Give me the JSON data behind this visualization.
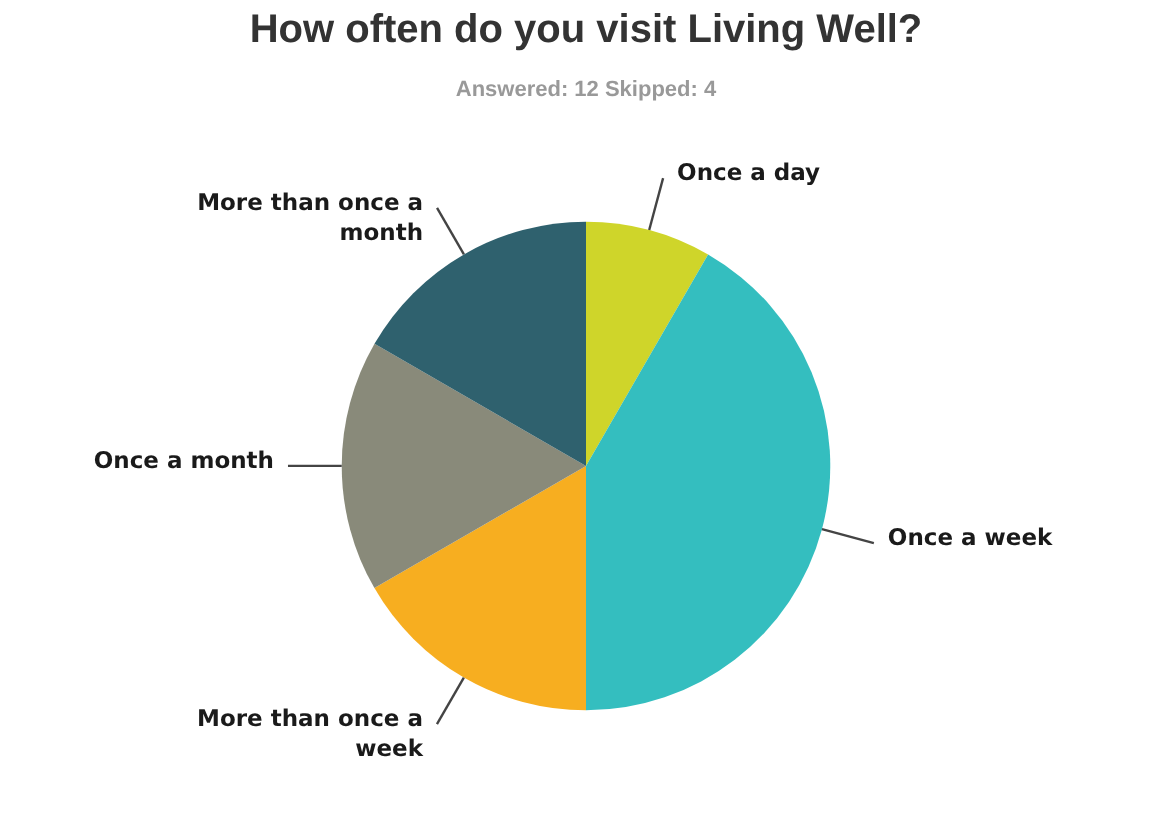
{
  "chart_data": {
    "type": "pie",
    "title": "How often do you visit Living Well?",
    "subtitle": "Answered: 12 Skipped: 4",
    "categories": [
      "Once a day",
      "Once a week",
      "More than once a week",
      "Once a month",
      "More than once a month"
    ],
    "values": [
      8.33,
      41.67,
      16.67,
      16.67,
      16.66
    ],
    "colors": [
      "#cfd52a",
      "#34bebf",
      "#f7ae20",
      "#898a7a",
      "#2f616e"
    ]
  }
}
